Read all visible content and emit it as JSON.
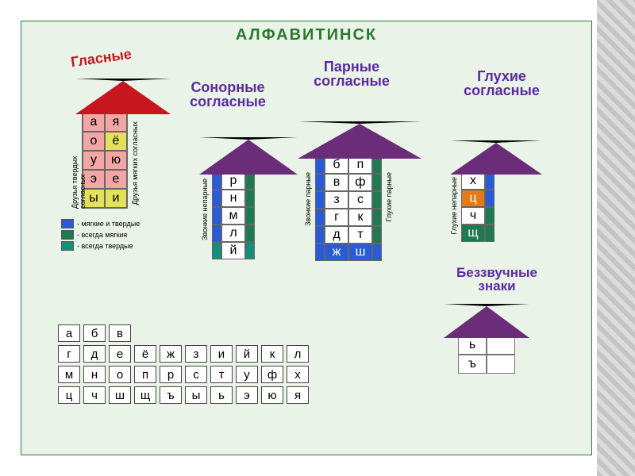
{
  "colors": {
    "blue": "#2a5bd7",
    "green": "#1f7a52",
    "teal": "#138f7a",
    "white": "#ffffff",
    "pink": "#f2a6a6",
    "yellow": "#e3e05a",
    "orange": "#e27a1a",
    "vowel_roof": "#c7161d",
    "cons_roof": "#6b2c7a",
    "bg": "#eaf3e7",
    "title_color": "#2a7a2a"
  },
  "main_title": "АЛФАВИТИНСК",
  "sections": {
    "vowels": "Гласные",
    "sonor": "Сонорные согласные",
    "paired": "Парные согласные",
    "deaf": "Глухие согласные",
    "silent": "Беззвучные знаки"
  },
  "vowels": {
    "side_left": "Друзья твердых согласных",
    "side_right": "Друзья мягких согласных",
    "rows": [
      {
        "l": "а",
        "lc": "pink",
        "r": "я",
        "rc": "pink"
      },
      {
        "l": "о",
        "lc": "pink",
        "r": "ё",
        "rc": "yellow"
      },
      {
        "l": "у",
        "lc": "pink",
        "r": "ю",
        "rc": "pink"
      },
      {
        "l": "э",
        "lc": "pink",
        "r": "е",
        "rc": "pink"
      },
      {
        "l": "ы",
        "lc": "yellow",
        "r": "и",
        "rc": "yellow"
      }
    ]
  },
  "sonor": {
    "side": "Звонкие непарные",
    "rows": [
      {
        "l": "р",
        "lc": "blue",
        "rc": "green"
      },
      {
        "l": "н",
        "lc": "blue",
        "rc": "green"
      },
      {
        "l": "м",
        "lc": "blue",
        "rc": "green"
      },
      {
        "l": "л",
        "lc": "blue",
        "rc": "green"
      },
      {
        "l": "й",
        "lc": "teal",
        "rc": "teal"
      }
    ]
  },
  "paired": {
    "side_left": "Звонкие парные",
    "side_right": "Глухие парные",
    "rows": [
      {
        "l": "б",
        "r": "п",
        "el": "blue",
        "er": "green"
      },
      {
        "l": "в",
        "r": "ф",
        "el": "blue",
        "er": "green"
      },
      {
        "l": "з",
        "r": "с",
        "el": "blue",
        "er": "green"
      },
      {
        "l": "г",
        "r": "к",
        "el": "blue",
        "er": "green"
      },
      {
        "l": "д",
        "r": "т",
        "el": "blue",
        "er": "green"
      },
      {
        "l": "ж",
        "r": "ш",
        "el": "blue",
        "er": "blue",
        "lbg": "blue",
        "rbg": "blue"
      }
    ]
  },
  "deaf": {
    "side": "Глухие непарные",
    "rows": [
      {
        "l": "х",
        "lb": "white",
        "r": "blue",
        "rr": "green"
      },
      {
        "l": "ц",
        "lb": "orange",
        "r": "blue",
        "rr": "blue"
      },
      {
        "l": "ч",
        "lb": "white",
        "r": "green",
        "rr": "teal"
      },
      {
        "l": "щ",
        "lb": "green",
        "r": "green",
        "rr": "teal"
      }
    ]
  },
  "silent": {
    "rows": [
      {
        "l": "ь",
        "r": ""
      },
      {
        "l": "ъ",
        "r": ""
      }
    ]
  },
  "legend": [
    {
      "color": "blue",
      "label": "- мягкие и твердые"
    },
    {
      "color": "green",
      "label": "- всегда мягкие"
    },
    {
      "color": "teal",
      "label": "- всегда твердые"
    }
  ],
  "alphabet_row1": [
    "а",
    "б",
    "в"
  ],
  "alphabet": [
    "г",
    "д",
    "е",
    "ё",
    "ж",
    "з",
    "и",
    "й",
    "к",
    "л",
    "м",
    "н",
    "о",
    "п",
    "р",
    "с",
    "т",
    "у",
    "ф",
    "х",
    "ц",
    "ч",
    "ш",
    "щ",
    "ъ",
    "ы",
    "ь",
    "э",
    "ю",
    "я"
  ]
}
